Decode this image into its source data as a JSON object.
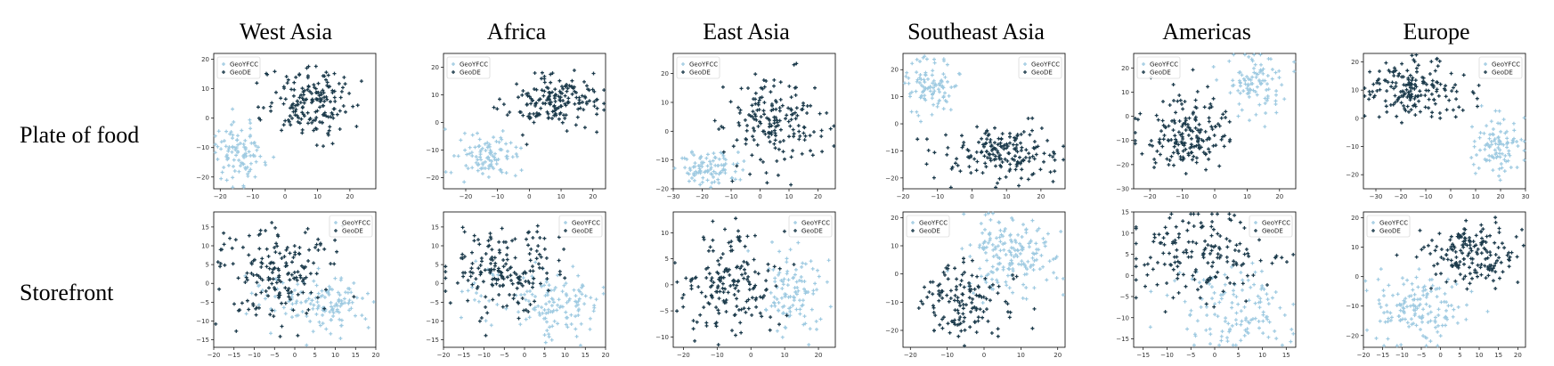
{
  "figure": {
    "column_titles": [
      "West Asia",
      "Africa",
      "East Asia",
      "Southeast Asia",
      "Americas",
      "Europe"
    ],
    "row_labels": [
      "Plate of food",
      "Storefront"
    ]
  },
  "colors": {
    "GeoYFCC": "#9ecae1",
    "GeoDE": "#1b3a4b"
  },
  "chart_data": [
    {
      "type": "scatter",
      "region": "West Asia",
      "category": "Plate of food",
      "xlim": [
        -22,
        28
      ],
      "ylim": [
        -24,
        22
      ],
      "xticks": [
        -20,
        -10,
        0,
        10,
        20
      ],
      "yticks": [
        -20,
        -10,
        0,
        10,
        20
      ],
      "legend": "top-left",
      "series": [
        {
          "name": "GeoYFCC",
          "clusters": [
            {
              "cx": -14,
              "cy": -12,
              "sx": 4,
              "sy": 5,
              "n": 100
            }
          ]
        },
        {
          "name": "GeoDE",
          "clusters": [
            {
              "cx": 8,
              "cy": 6,
              "sx": 7,
              "sy": 6,
              "n": 180
            }
          ]
        }
      ]
    },
    {
      "type": "scatter",
      "region": "Africa",
      "category": "Plate of food",
      "xlim": [
        -27,
        24
      ],
      "ylim": [
        -24,
        25
      ],
      "xticks": [
        -20,
        -10,
        0,
        10,
        20
      ],
      "yticks": [
        -20,
        -10,
        0,
        10,
        20
      ],
      "legend": "top-left",
      "series": [
        {
          "name": "GeoYFCC",
          "clusters": [
            {
              "cx": -14,
              "cy": -13,
              "sx": 5,
              "sy": 4,
              "n": 100
            }
          ]
        },
        {
          "name": "GeoDE",
          "clusters": [
            {
              "cx": 8,
              "cy": 8,
              "sx": 7,
              "sy": 5,
              "n": 180
            }
          ]
        }
      ]
    },
    {
      "type": "scatter",
      "region": "East Asia",
      "category": "Plate of food",
      "xlim": [
        -30,
        26
      ],
      "ylim": [
        -20,
        27
      ],
      "xticks": [
        -30,
        -20,
        -10,
        0,
        10,
        20
      ],
      "yticks": [
        -20,
        -10,
        0,
        10,
        20
      ],
      "legend": "top-left",
      "series": [
        {
          "name": "GeoYFCC",
          "clusters": [
            {
              "cx": -18,
              "cy": -13,
              "sx": 5,
              "sy": 3,
              "n": 100
            }
          ]
        },
        {
          "name": "GeoDE",
          "clusters": [
            {
              "cx": 5,
              "cy": 3,
              "sx": 9,
              "sy": 8,
              "n": 180
            }
          ]
        }
      ]
    },
    {
      "type": "scatter",
      "region": "Southeast Asia",
      "category": "Plate of food",
      "xlim": [
        -20,
        27
      ],
      "ylim": [
        -24,
        26
      ],
      "xticks": [
        -20,
        -10,
        0,
        10,
        20
      ],
      "yticks": [
        -20,
        -10,
        0,
        10,
        20
      ],
      "legend": "top-right",
      "series": [
        {
          "name": "GeoYFCC",
          "clusters": [
            {
              "cx": -12,
              "cy": 14,
              "sx": 4,
              "sy": 5,
              "n": 100
            }
          ]
        },
        {
          "name": "GeoDE",
          "clusters": [
            {
              "cx": 10,
              "cy": -10,
              "sx": 8,
              "sy": 5,
              "n": 180
            }
          ]
        }
      ]
    },
    {
      "type": "scatter",
      "region": "Americas",
      "category": "Plate of food",
      "xlim": [
        -25,
        25
      ],
      "ylim": [
        -30,
        26
      ],
      "xticks": [
        -20,
        -10,
        0,
        10,
        20
      ],
      "yticks": [
        -30,
        -20,
        -10,
        0,
        10,
        20
      ],
      "legend": "top-left",
      "series": [
        {
          "name": "GeoYFCC",
          "clusters": [
            {
              "cx": 13,
              "cy": 13,
              "sx": 5,
              "sy": 6,
              "n": 100
            }
          ]
        },
        {
          "name": "GeoDE",
          "clusters": [
            {
              "cx": -8,
              "cy": -8,
              "sx": 7,
              "sy": 8,
              "n": 180
            }
          ]
        }
      ]
    },
    {
      "type": "scatter",
      "region": "Europe",
      "category": "Plate of food",
      "xlim": [
        -35,
        30
      ],
      "ylim": [
        -25,
        23
      ],
      "xticks": [
        -30,
        -20,
        -10,
        0,
        10,
        20,
        30
      ],
      "yticks": [
        -20,
        -10,
        0,
        10,
        20
      ],
      "legend": "top-right",
      "series": [
        {
          "name": "GeoYFCC",
          "clusters": [
            {
              "cx": 18,
              "cy": -10,
              "sx": 5,
              "sy": 5,
              "n": 100
            }
          ]
        },
        {
          "name": "GeoDE",
          "clusters": [
            {
              "cx": -15,
              "cy": 10,
              "sx": 9,
              "sy": 5,
              "n": 180
            }
          ]
        }
      ]
    },
    {
      "type": "scatter",
      "region": "West Asia",
      "category": "Storefront",
      "xlim": [
        -20,
        20
      ],
      "ylim": [
        -17,
        19
      ],
      "xticks": [
        -20,
        -15,
        -10,
        -5,
        0,
        5,
        10,
        15,
        20
      ],
      "yticks": [
        -15,
        -10,
        -5,
        0,
        5,
        10,
        15
      ],
      "legend": "top-right",
      "series": [
        {
          "name": "GeoYFCC",
          "clusters": [
            {
              "cx": 8,
              "cy": -6,
              "sx": 5,
              "sy": 4,
              "n": 110
            },
            {
              "cx": -5,
              "cy": -3,
              "sx": 6,
              "sy": 4,
              "n": 30
            }
          ]
        },
        {
          "name": "GeoDE",
          "clusters": [
            {
              "cx": -5,
              "cy": 3,
              "sx": 7,
              "sy": 6,
              "n": 180
            }
          ]
        }
      ]
    },
    {
      "type": "scatter",
      "region": "Africa",
      "category": "Storefront",
      "xlim": [
        -20,
        20
      ],
      "ylim": [
        -17,
        19
      ],
      "xticks": [
        -20,
        -15,
        -10,
        -5,
        0,
        5,
        10,
        15,
        20
      ],
      "yticks": [
        -15,
        -10,
        -5,
        0,
        5,
        10,
        15
      ],
      "legend": "top-right",
      "series": [
        {
          "name": "GeoYFCC",
          "clusters": [
            {
              "cx": 8,
              "cy": -6,
              "sx": 5,
              "sy": 4,
              "n": 110
            },
            {
              "cx": -5,
              "cy": -3,
              "sx": 6,
              "sy": 4,
              "n": 30
            }
          ]
        },
        {
          "name": "GeoDE",
          "clusters": [
            {
              "cx": -5,
              "cy": 3,
              "sx": 7,
              "sy": 6,
              "n": 180
            }
          ]
        }
      ]
    },
    {
      "type": "scatter",
      "region": "East Asia",
      "category": "Storefront",
      "xlim": [
        -23,
        25
      ],
      "ylim": [
        -12,
        14
      ],
      "xticks": [
        -20,
        -10,
        0,
        10,
        20
      ],
      "yticks": [
        -10,
        -5,
        0,
        5,
        10
      ],
      "legend": "top-right",
      "series": [
        {
          "name": "GeoYFCC",
          "clusters": [
            {
              "cx": 13,
              "cy": -2,
              "sx": 5,
              "sy": 4,
              "n": 110
            }
          ]
        },
        {
          "name": "GeoDE",
          "clusters": [
            {
              "cx": -5,
              "cy": 0,
              "sx": 7,
              "sy": 5,
              "n": 180
            }
          ]
        }
      ]
    },
    {
      "type": "scatter",
      "region": "Southeast Asia",
      "category": "Storefront",
      "xlim": [
        -22,
        22
      ],
      "ylim": [
        -26,
        22
      ],
      "xticks": [
        -20,
        -10,
        0,
        10,
        20
      ],
      "yticks": [
        -20,
        -10,
        0,
        10,
        20
      ],
      "legend": "top-left",
      "series": [
        {
          "name": "GeoYFCC",
          "clusters": [
            {
              "cx": 8,
              "cy": 7,
              "sx": 7,
              "sy": 7,
              "n": 180
            }
          ]
        },
        {
          "name": "GeoDE",
          "clusters": [
            {
              "cx": -5,
              "cy": -10,
              "sx": 6,
              "sy": 7,
              "n": 140
            }
          ]
        }
      ]
    },
    {
      "type": "scatter",
      "region": "Americas",
      "category": "Storefront",
      "xlim": [
        -17,
        17
      ],
      "ylim": [
        -17,
        15
      ],
      "xticks": [
        -15,
        -10,
        -5,
        0,
        5,
        10,
        15
      ],
      "yticks": [
        -15,
        -10,
        -5,
        0,
        5,
        10,
        15
      ],
      "legend": "top-right",
      "series": [
        {
          "name": "GeoYFCC",
          "clusters": [
            {
              "cx": 5,
              "cy": -8,
              "sx": 6,
              "sy": 5,
              "n": 130
            }
          ]
        },
        {
          "name": "GeoDE",
          "clusters": [
            {
              "cx": -3,
              "cy": 5,
              "sx": 7,
              "sy": 5,
              "n": 170
            }
          ]
        }
      ]
    },
    {
      "type": "scatter",
      "region": "Europe",
      "category": "Storefront",
      "xlim": [
        -20,
        22
      ],
      "ylim": [
        -24,
        22
      ],
      "xticks": [
        -20,
        -15,
        -10,
        -5,
        0,
        5,
        10,
        15,
        20
      ],
      "yticks": [
        -20,
        -10,
        0,
        10,
        20
      ],
      "legend": "top-left",
      "series": [
        {
          "name": "GeoYFCC",
          "clusters": [
            {
              "cx": -6,
              "cy": -10,
              "sx": 6,
              "sy": 6,
              "n": 150
            }
          ]
        },
        {
          "name": "GeoDE",
          "clusters": [
            {
              "cx": 8,
              "cy": 8,
              "sx": 6,
              "sy": 6,
              "n": 170
            }
          ]
        }
      ]
    }
  ]
}
